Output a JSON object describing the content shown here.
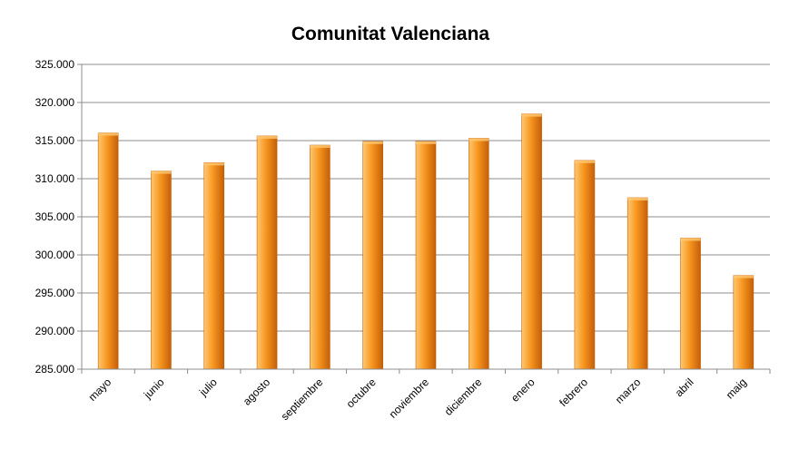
{
  "chart_data": {
    "type": "bar",
    "title": "Comunitat Valenciana",
    "xlabel": "",
    "ylabel": "",
    "categories": [
      "mayo",
      "junio",
      "julio",
      "agosto",
      "septiembre",
      "octubre",
      "noviembre",
      "diciembre",
      "enero",
      "febrero",
      "marzo",
      "abril",
      "maig"
    ],
    "values": [
      316000,
      311000,
      312100,
      315600,
      314400,
      314900,
      314900,
      315300,
      318500,
      312400,
      307500,
      302200,
      297300
    ],
    "ylim": [
      285000,
      325000
    ],
    "yticks": [
      285000,
      290000,
      295000,
      300000,
      305000,
      310000,
      315000,
      320000,
      325000
    ],
    "ytick_labels": [
      "285.000",
      "290.000",
      "295.000",
      "300.000",
      "305.000",
      "310.000",
      "315.000",
      "320.000",
      "325.000"
    ],
    "grid": true,
    "legend": "none",
    "colors": {
      "bar_light": "#ffc870",
      "bar_mid": "#f7961f",
      "bar_dark": "#c55f08",
      "grid": "#8c8c8c"
    }
  }
}
